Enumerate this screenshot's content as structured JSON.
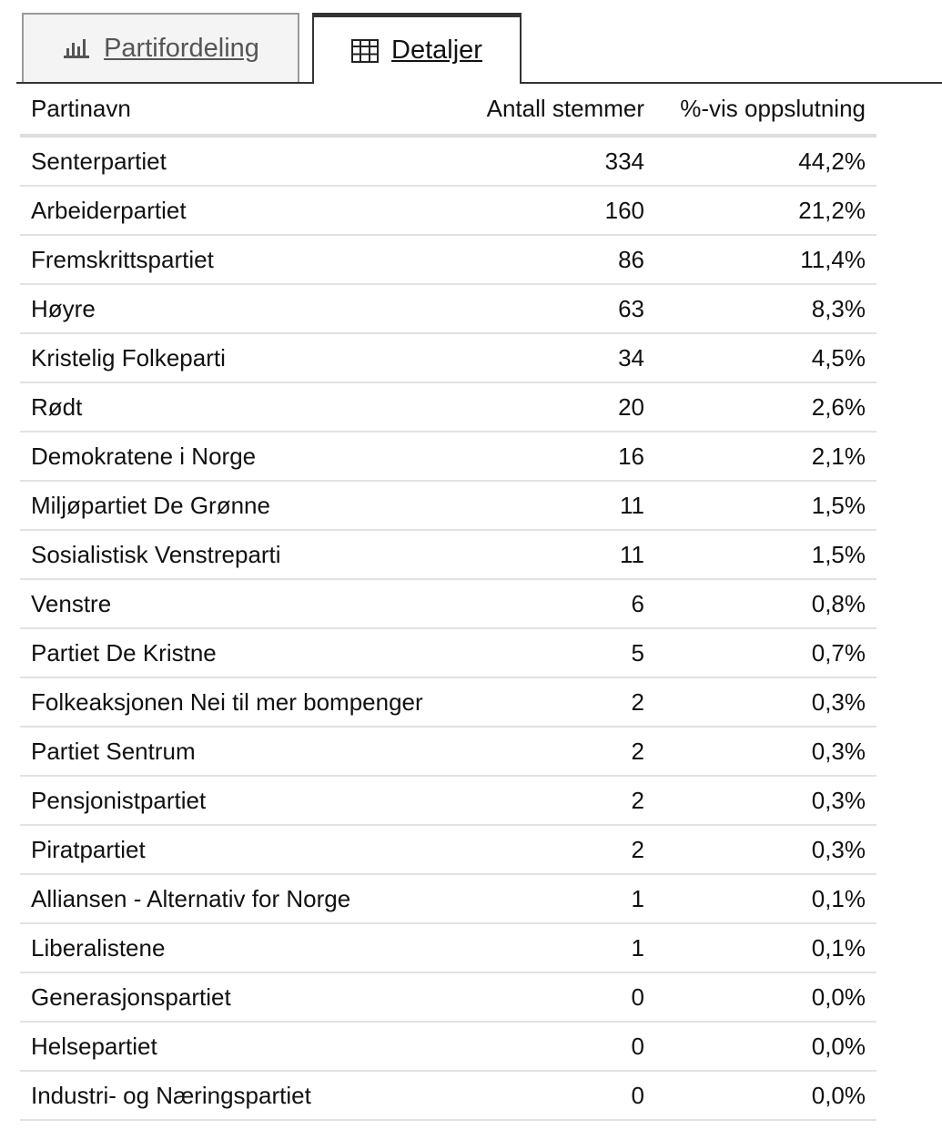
{
  "tabs": [
    {
      "label": "Partifordeling"
    },
    {
      "label": "Detaljer"
    }
  ],
  "table": {
    "headers": [
      "Partinavn",
      "Antall stemmer",
      "%-vis oppslutning"
    ],
    "rows": [
      [
        "Senterpartiet",
        "334",
        "44,2%"
      ],
      [
        "Arbeiderpartiet",
        "160",
        "21,2%"
      ],
      [
        "Fremskrittspartiet",
        "86",
        "11,4%"
      ],
      [
        "Høyre",
        "63",
        "8,3%"
      ],
      [
        "Kristelig Folkeparti",
        "34",
        "4,5%"
      ],
      [
        "Rødt",
        "20",
        "2,6%"
      ],
      [
        "Demokratene i Norge",
        "16",
        "2,1%"
      ],
      [
        "Miljøpartiet De Grønne",
        "11",
        "1,5%"
      ],
      [
        "Sosialistisk Venstreparti",
        "11",
        "1,5%"
      ],
      [
        "Venstre",
        "6",
        "0,8%"
      ],
      [
        "Partiet De Kristne",
        "5",
        "0,7%"
      ],
      [
        "Folkeaksjonen Nei til mer bompenger",
        "2",
        "0,3%"
      ],
      [
        "Partiet Sentrum",
        "2",
        "0,3%"
      ],
      [
        "Pensjonistpartiet",
        "2",
        "0,3%"
      ],
      [
        "Piratpartiet",
        "2",
        "0,3%"
      ],
      [
        "Alliansen - Alternativ for Norge",
        "1",
        "0,1%"
      ],
      [
        "Liberalistene",
        "1",
        "0,1%"
      ],
      [
        "Generasjonspartiet",
        "0",
        "0,0%"
      ],
      [
        "Helsepartiet",
        "0",
        "0,0%"
      ],
      [
        "Industri- og Næringspartiet",
        "0",
        "0,0%"
      ]
    ]
  }
}
